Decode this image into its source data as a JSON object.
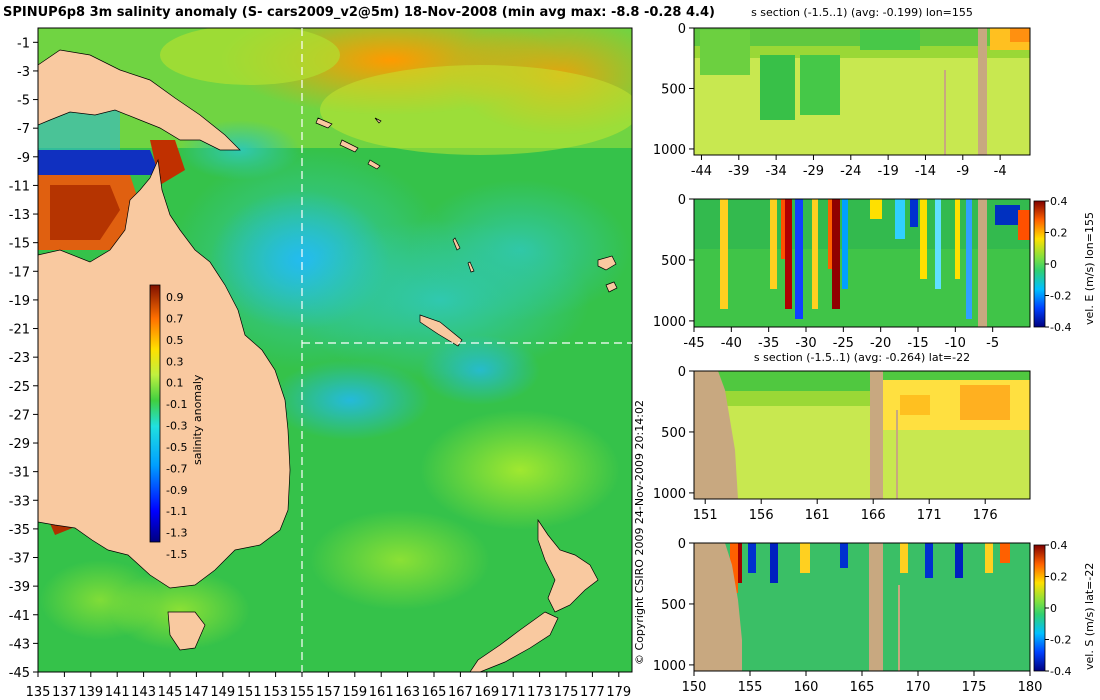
{
  "main_title": "SPINUP6p8 3m salinity anomaly (S- cars2009_v2@5m) 18-Nov-2008 (min avg max: -8.8 -0.28 4.4)",
  "copyright": "© Copyright CSIRO 2009    24-Nov-2009 20:14:02",
  "colors": {
    "land": "#f9c9a0",
    "section_land": "#c8a880",
    "background": "#ffffff"
  },
  "chart_data": [
    {
      "id": "map",
      "type": "heatmap",
      "title": "",
      "xlabel": "",
      "ylabel": "",
      "xlim": [
        135,
        180
      ],
      "ylim": [
        -45,
        0
      ],
      "x_ticks": [
        "135",
        "137",
        "139",
        "141",
        "143",
        "145",
        "147",
        "149",
        "151",
        "153",
        "155",
        "157",
        "159",
        "161",
        "163",
        "165",
        "167",
        "169",
        "171",
        "173",
        "175",
        "177",
        "179"
      ],
      "y_ticks": [
        "-1",
        "-3",
        "-5",
        "-7",
        "-9",
        "-11",
        "-13",
        "-15",
        "-17",
        "-19",
        "-21",
        "-23",
        "-25",
        "-27",
        "-29",
        "-31",
        "-33",
        "-35",
        "-37",
        "-39",
        "-41",
        "-43",
        "-45"
      ],
      "section_lon": 155,
      "section_lat": -22,
      "colorbar": {
        "label": "salinity anomaly",
        "ticks": [
          "0.9",
          "0.7",
          "0.5",
          "0.3",
          "0.1",
          "-0.1",
          "-0.3",
          "-0.5",
          "-0.7",
          "-0.9",
          "-1.1",
          "-1.3",
          "-1.5"
        ],
        "range": [
          -1.5,
          0.9
        ]
      }
    },
    {
      "id": "sec1",
      "type": "heatmap",
      "title": "s section (-1.5..1) (avg: -0.199) lon=155",
      "x_ticks": [
        "-44",
        "-39",
        "-34",
        "-29",
        "-24",
        "-19",
        "-14",
        "-9",
        "-4"
      ],
      "xlim": [
        -45,
        0
      ],
      "y_ticks": [
        "0",
        "500",
        "1000"
      ],
      "ylim": [
        0,
        1050
      ]
    },
    {
      "id": "sec2",
      "type": "heatmap",
      "title": "",
      "x_ticks": [
        "-45",
        "-40",
        "-35",
        "-30",
        "-25",
        "-20",
        "-15",
        "-10",
        "-5"
      ],
      "xlim": [
        -45,
        0
      ],
      "y_ticks": [
        "0",
        "500",
        "1000"
      ],
      "ylim": [
        0,
        1050
      ],
      "colorbar": {
        "label": "vel. E (m/s) lon=155",
        "ticks": [
          "0.4",
          "0.2",
          "0",
          "-0.2",
          "-0.4"
        ],
        "range": [
          -0.4,
          0.4
        ]
      }
    },
    {
      "id": "sec3",
      "type": "heatmap",
      "title": "s section (-1.5..1) (avg: -0.264) lat=-22",
      "x_ticks": [
        "151",
        "156",
        "161",
        "166",
        "171",
        "176"
      ],
      "xlim": [
        150,
        180
      ],
      "y_ticks": [
        "0",
        "500",
        "1000"
      ],
      "ylim": [
        0,
        1050
      ]
    },
    {
      "id": "sec4",
      "type": "heatmap",
      "title": "",
      "x_ticks": [
        "150",
        "155",
        "160",
        "165",
        "170",
        "175",
        "180"
      ],
      "xlim": [
        150,
        180
      ],
      "y_ticks": [
        "0",
        "500",
        "1000"
      ],
      "ylim": [
        0,
        1050
      ],
      "colorbar": {
        "label": "vel. S (m/s) lat=-22",
        "ticks": [
          "0.4",
          "0.2",
          "0",
          "-0.2",
          "-0.4"
        ],
        "range": [
          -0.4,
          0.4
        ]
      }
    }
  ]
}
